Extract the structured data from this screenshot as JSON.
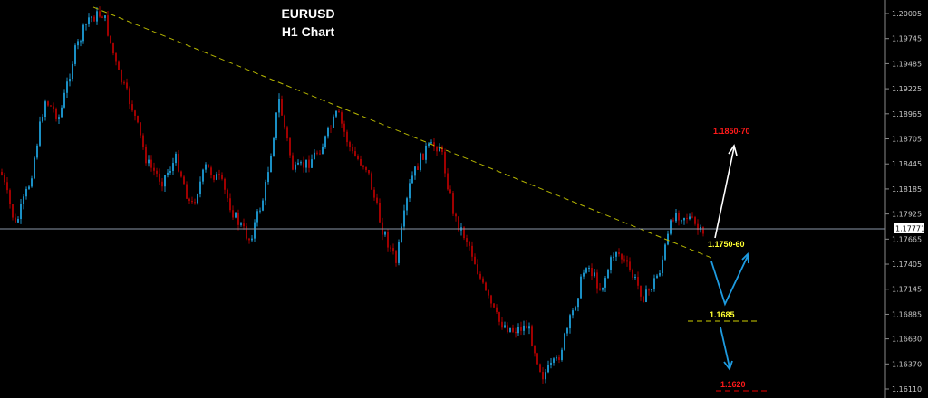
{
  "chart_data": {
    "type": "candlestick",
    "title": "EURUSD",
    "subtitle": "H1 Chart",
    "symbol": "EURUSD",
    "timeframe": "H1",
    "y_axis": {
      "position": "right",
      "ylim": [
        1.1611,
        1.20005
      ],
      "tick_labels": [
        "1.20005",
        "1.19745",
        "1.19485",
        "1.19225",
        "1.18965",
        "1.18705",
        "1.18445",
        "1.18185",
        "1.17925",
        "1.17665",
        "1.17405",
        "1.17145",
        "1.16885",
        "1.16630",
        "1.16370",
        "1.16110"
      ]
    },
    "current_price": "1.17771",
    "colors": {
      "background": "#000000",
      "bull": "#1a8fc4",
      "bear": "#a00000",
      "trendline": "#b5b500",
      "grid_text": "#c8c8c8",
      "target_up": "#ff1a1a",
      "support": "#ffff33",
      "arrow_blue": "#1e9be0",
      "arrow_white": "#ffffff"
    },
    "price_path": [
      1.18363,
      1.17799,
      1.18269,
      1.19113,
      1.18926,
      1.19583,
      1.19958,
      1.20005,
      1.19395,
      1.1902,
      1.18456,
      1.18269,
      1.18503,
      1.17987,
      1.1841,
      1.18269,
      1.17893,
      1.17659,
      1.18128,
      1.19113,
      1.18363,
      1.18456,
      1.18644,
      1.18973,
      1.1855,
      1.1841,
      1.17799,
      1.17424,
      1.18269,
      1.18597,
      1.18644,
      1.17893,
      1.17612,
      1.17143,
      1.16814,
      1.1672,
      1.16767,
      1.16251,
      1.16392,
      1.16861,
      1.17424,
      1.17143,
      1.17565,
      1.1733,
      1.17049,
      1.1733,
      1.1794,
      1.17893,
      1.17687
    ],
    "trendline": {
      "start_price": 1.20071,
      "end_price": 1.17471,
      "style": "dashed"
    },
    "annotations": {
      "target_up": "1.1850-70",
      "resistance_zone": "1.1750-60",
      "support_level": "1.1685",
      "target_down": "1.1620"
    }
  }
}
